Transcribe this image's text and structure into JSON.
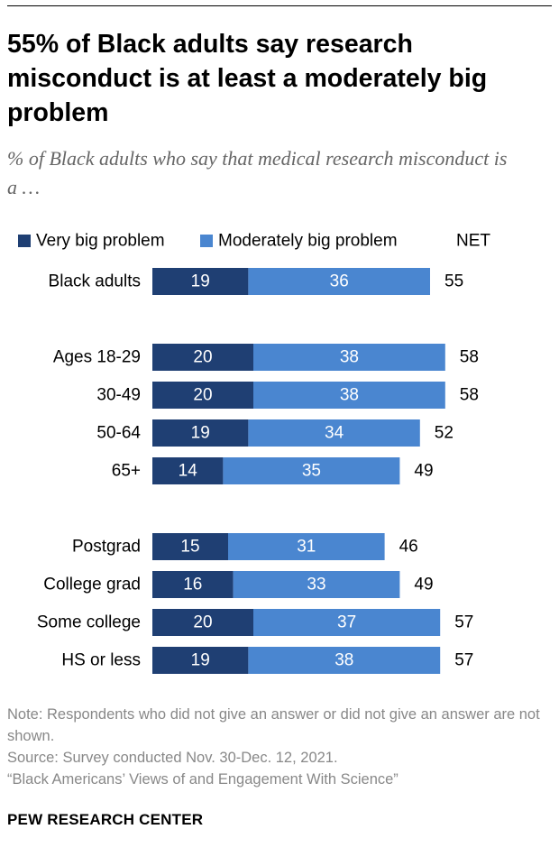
{
  "title": "55% of Black adults say research misconduct is at least a moderately big problem",
  "subtitle": "% of Black adults who say that medical research misconduct is a …",
  "chart_data": {
    "type": "bar",
    "orientation": "horizontal",
    "stacked": true,
    "categories": [
      "Black adults",
      "Ages 18-29",
      "30-49",
      "50-64",
      "65+",
      "Postgrad",
      "College grad",
      "Some college",
      "HS or less"
    ],
    "groups": [
      [
        "Black adults"
      ],
      [
        "Ages 18-29",
        "30-49",
        "50-64",
        "65+"
      ],
      [
        "Postgrad",
        "College grad",
        "Some college",
        "HS or less"
      ]
    ],
    "series": [
      {
        "name": "Very big problem",
        "color": "#1f3f73",
        "values": [
          19,
          20,
          20,
          19,
          14,
          15,
          16,
          20,
          19
        ]
      },
      {
        "name": "Moderately big problem",
        "color": "#4a86d0",
        "values": [
          36,
          38,
          38,
          34,
          35,
          31,
          33,
          37,
          38
        ]
      }
    ],
    "net": {
      "label": "NET",
      "values": [
        55,
        58,
        58,
        52,
        49,
        46,
        49,
        57,
        57
      ]
    }
  },
  "notes": {
    "note": "Note: Respondents who did not give an answer or did not give an answer are not shown.",
    "source": "Source: Survey conducted Nov. 30-Dec. 12, 2021.",
    "report": "“Black Americans’ Views of and Engagement With Science”"
  },
  "brand": "PEW RESEARCH CENTER"
}
